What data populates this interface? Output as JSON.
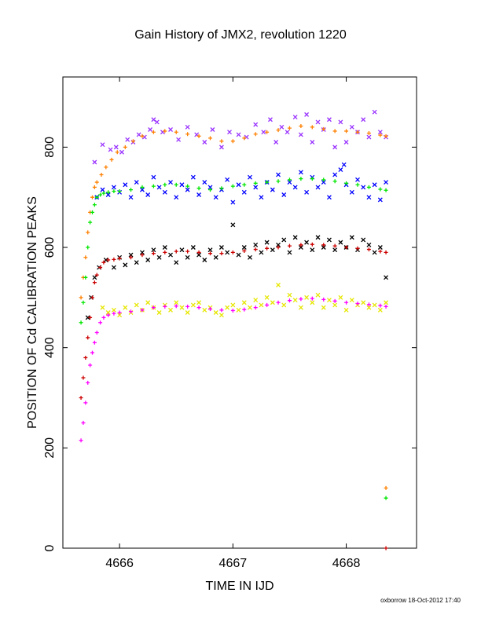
{
  "chart_data": {
    "type": "scatter",
    "title": "Gain History of JMX2, revolution 1220",
    "xlabel": "TIME IN IJD",
    "ylabel": "POSITION OF Cd CALIBRATION PEAKS",
    "xlim": [
      4665.5,
      4668.62
    ],
    "ylim": [
      0,
      940
    ],
    "xticks": [
      4666,
      4667,
      4668
    ],
    "xtick_labels": [
      "4666",
      "4667",
      "4668"
    ],
    "yticks": [
      0,
      200,
      400,
      600,
      800
    ],
    "ytick_labels": [
      "0",
      "200",
      "400",
      "600",
      "800"
    ],
    "grid": false,
    "legend": "none",
    "series": [
      {
        "color": "#9933ff",
        "marker": "x",
        "x": [
          4665.78,
          4665.85,
          4665.92,
          4665.97,
          4666.02,
          4666.07,
          4666.12,
          4666.17,
          4666.22,
          4666.27,
          4666.3,
          4666.33,
          4666.38,
          4666.45,
          4666.52,
          4666.6,
          4666.68,
          4666.75,
          4666.82,
          4666.9,
          4666.97,
          4667.05,
          4667.12,
          4667.2,
          4667.27,
          4667.33,
          4667.38,
          4667.43,
          4667.48,
          4667.55,
          4667.6,
          4667.65,
          4667.7,
          4667.75,
          4667.8,
          4667.85,
          4667.9,
          4667.95,
          4668.0,
          4668.05,
          4668.1,
          4668.15,
          4668.2,
          4668.25,
          4668.3,
          4668.35
        ],
        "y": [
          770,
          805,
          795,
          800,
          790,
          815,
          810,
          825,
          820,
          835,
          855,
          850,
          830,
          835,
          815,
          840,
          825,
          810,
          835,
          800,
          830,
          825,
          820,
          845,
          830,
          855,
          810,
          840,
          830,
          860,
          825,
          865,
          810,
          850,
          835,
          855,
          800,
          850,
          810,
          840,
          830,
          855,
          820,
          870,
          830,
          820
        ]
      },
      {
        "color": "#0000ff",
        "marker": "x",
        "x": [
          4665.8,
          4665.85,
          4665.9,
          4665.95,
          4666.0,
          4666.05,
          4666.1,
          4666.15,
          4666.2,
          4666.25,
          4666.3,
          4666.35,
          4666.4,
          4666.45,
          4666.5,
          4666.55,
          4666.6,
          4666.65,
          4666.7,
          4666.75,
          4666.8,
          4666.85,
          4666.9,
          4666.95,
          4667.0,
          4667.05,
          4667.1,
          4667.15,
          4667.2,
          4667.25,
          4667.3,
          4667.35,
          4667.4,
          4667.45,
          4667.5,
          4667.55,
          4667.6,
          4667.65,
          4667.7,
          4667.75,
          4667.8,
          4667.85,
          4667.9,
          4667.95,
          4667.98,
          4668.0,
          4668.05,
          4668.1,
          4668.15,
          4668.2,
          4668.25,
          4668.3,
          4668.35
        ],
        "y": [
          700,
          715,
          705,
          720,
          710,
          725,
          700,
          730,
          715,
          705,
          740,
          720,
          710,
          730,
          700,
          725,
          715,
          740,
          705,
          730,
          720,
          700,
          715,
          735,
          690,
          725,
          710,
          740,
          720,
          700,
          730,
          715,
          745,
          705,
          730,
          720,
          750,
          710,
          740,
          720,
          730,
          700,
          745,
          755,
          765,
          725,
          710,
          735,
          720,
          700,
          725,
          695,
          730
        ]
      },
      {
        "color": "#000000",
        "marker": "x",
        "x": [
          4665.72,
          4665.75,
          4665.78,
          4665.82,
          4665.88,
          4665.95,
          4666.0,
          4666.05,
          4666.1,
          4666.15,
          4666.2,
          4666.25,
          4666.3,
          4666.35,
          4666.4,
          4666.45,
          4666.5,
          4666.55,
          4666.6,
          4666.65,
          4666.7,
          4666.75,
          4666.8,
          4666.85,
          4666.9,
          4666.95,
          4667.0,
          4667.05,
          4667.1,
          4667.15,
          4667.2,
          4667.25,
          4667.3,
          4667.35,
          4667.4,
          4667.45,
          4667.5,
          4667.55,
          4667.6,
          4667.65,
          4667.7,
          4667.75,
          4667.8,
          4667.85,
          4667.9,
          4667.95,
          4668.0,
          4668.05,
          4668.1,
          4668.15,
          4668.2,
          4668.25,
          4668.3,
          4668.35
        ],
        "y": [
          460,
          500,
          540,
          560,
          575,
          560,
          580,
          565,
          585,
          570,
          590,
          575,
          595,
          580,
          600,
          585,
          570,
          595,
          580,
          600,
          585,
          575,
          595,
          580,
          600,
          590,
          645,
          585,
          600,
          580,
          605,
          590,
          610,
          595,
          605,
          615,
          590,
          620,
          600,
          610,
          595,
          620,
          600,
          615,
          595,
          610,
          600,
          620,
          595,
          615,
          605,
          590,
          600,
          540
        ]
      },
      {
        "color": "#e6e600",
        "marker": "x",
        "x": [
          4665.85,
          4665.9,
          4665.95,
          4666.0,
          4666.05,
          4666.1,
          4666.15,
          4666.2,
          4666.25,
          4666.3,
          4666.35,
          4666.4,
          4666.45,
          4666.5,
          4666.55,
          4666.6,
          4666.65,
          4666.7,
          4666.75,
          4666.8,
          4666.85,
          4666.9,
          4666.95,
          4667.0,
          4667.05,
          4667.1,
          4667.15,
          4667.2,
          4667.25,
          4667.3,
          4667.35,
          4667.4,
          4667.45,
          4667.5,
          4667.55,
          4667.6,
          4667.65,
          4667.7,
          4667.75,
          4667.8,
          4667.85,
          4667.9,
          4667.95,
          4668.0,
          4668.05,
          4668.1,
          4668.15,
          4668.2,
          4668.25,
          4668.3,
          4668.35
        ],
        "y": [
          480,
          470,
          475,
          465,
          480,
          470,
          485,
          475,
          490,
          480,
          470,
          485,
          475,
          490,
          480,
          470,
          485,
          490,
          475,
          480,
          470,
          465,
          480,
          485,
          475,
          490,
          480,
          495,
          485,
          500,
          490,
          525,
          485,
          505,
          495,
          480,
          500,
          490,
          505,
          480,
          495,
          485,
          500,
          475,
          495,
          485,
          490,
          480,
          485,
          475,
          490
        ]
      },
      {
        "color": "#ff8000",
        "marker": "+",
        "x": [
          4665.66,
          4665.68,
          4665.7,
          4665.72,
          4665.74,
          4665.76,
          4665.78,
          4665.8,
          4665.84,
          4665.88,
          4665.93,
          4665.98,
          4666.05,
          4666.12,
          4666.2,
          4666.3,
          4666.4,
          4666.5,
          4666.6,
          4666.7,
          4666.8,
          4666.9,
          4667.0,
          4667.1,
          4667.2,
          4667.3,
          4667.4,
          4667.5,
          4667.6,
          4667.7,
          4667.8,
          4667.9,
          4668.0,
          4668.1,
          4668.2,
          4668.3,
          4668.35,
          4668.35
        ],
        "y": [
          500,
          540,
          580,
          630,
          670,
          700,
          720,
          730,
          745,
          760,
          775,
          790,
          800,
          812,
          822,
          830,
          832,
          830,
          826,
          822,
          818,
          812,
          812,
          818,
          826,
          830,
          834,
          838,
          842,
          840,
          836,
          832,
          832,
          830,
          828,
          824,
          822,
          120
        ]
      },
      {
        "color": "#00e600",
        "marker": "+",
        "x": [
          4665.66,
          4665.68,
          4665.7,
          4665.72,
          4665.74,
          4665.76,
          4665.78,
          4665.8,
          4665.83,
          4665.86,
          4665.9,
          4665.95,
          4666.0,
          4666.1,
          4666.2,
          4666.3,
          4666.4,
          4666.5,
          4666.6,
          4666.7,
          4666.8,
          4666.9,
          4667.0,
          4667.1,
          4667.2,
          4667.3,
          4667.4,
          4667.5,
          4667.6,
          4667.7,
          4667.8,
          4667.9,
          4668.0,
          4668.1,
          4668.2,
          4668.3,
          4668.35,
          4668.35
        ],
        "y": [
          450,
          490,
          540,
          600,
          650,
          670,
          685,
          700,
          705,
          708,
          710,
          712,
          712,
          715,
          720,
          722,
          725,
          725,
          722,
          718,
          715,
          718,
          722,
          725,
          728,
          730,
          732,
          735,
          737,
          737,
          735,
          732,
          728,
          725,
          720,
          716,
          714,
          100
        ]
      },
      {
        "color": "#cc0000",
        "marker": "+",
        "x": [
          4665.66,
          4665.68,
          4665.7,
          4665.72,
          4665.74,
          4665.76,
          4665.78,
          4665.8,
          4665.83,
          4665.86,
          4665.9,
          4665.95,
          4666.0,
          4666.1,
          4666.2,
          4666.3,
          4666.4,
          4666.5,
          4666.6,
          4666.7,
          4666.8,
          4666.9,
          4667.0,
          4667.1,
          4667.2,
          4667.3,
          4667.4,
          4667.5,
          4667.6,
          4667.7,
          4667.8,
          4667.9,
          4668.0,
          4668.1,
          4668.2,
          4668.3,
          4668.35,
          4668.35
        ],
        "y": [
          300,
          340,
          380,
          420,
          460,
          500,
          530,
          545,
          560,
          570,
          575,
          576,
          578,
          580,
          585,
          588,
          590,
          592,
          592,
          590,
          588,
          588,
          590,
          593,
          596,
          598,
          600,
          603,
          605,
          606,
          605,
          603,
          600,
          598,
          596,
          592,
          590,
          0
        ]
      },
      {
        "color": "#ff00ff",
        "marker": "+",
        "x": [
          4665.66,
          4665.68,
          4665.7,
          4665.72,
          4665.74,
          4665.76,
          4665.78,
          4665.8,
          4665.83,
          4665.86,
          4665.9,
          4665.95,
          4666.0,
          4666.1,
          4666.2,
          4666.3,
          4666.4,
          4666.5,
          4666.6,
          4666.7,
          4666.8,
          4666.9,
          4667.0,
          4667.1,
          4667.2,
          4667.3,
          4667.4,
          4667.5,
          4667.6,
          4667.7,
          4667.8,
          4667.9,
          4668.0,
          4668.1,
          4668.2,
          4668.3,
          4668.35
        ],
        "y": [
          215,
          250,
          290,
          330,
          365,
          390,
          410,
          430,
          450,
          460,
          465,
          468,
          470,
          472,
          475,
          480,
          482,
          483,
          482,
          480,
          477,
          475,
          474,
          476,
          480,
          485,
          490,
          494,
          497,
          498,
          496,
          493,
          490,
          488,
          486,
          484,
          482
        ]
      }
    ]
  },
  "footer": "oxborrow 18-Oct-2012 17:40"
}
